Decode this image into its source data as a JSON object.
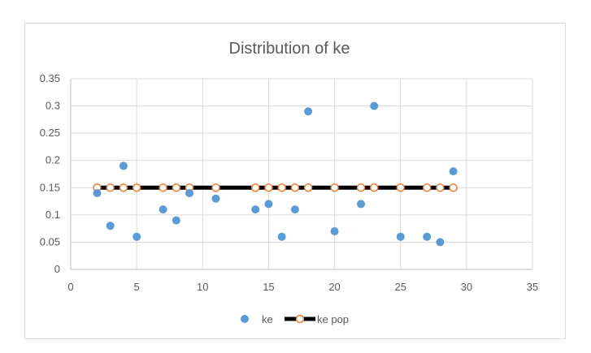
{
  "chart_data": {
    "type": "scatter",
    "title": "Distribution of ke",
    "xlabel": "",
    "ylabel": "",
    "xlim": [
      0,
      35
    ],
    "ylim": [
      0,
      0.35
    ],
    "x_ticks": [
      "0",
      "5",
      "10",
      "15",
      "20",
      "25",
      "30",
      "35"
    ],
    "y_ticks": [
      "0",
      "0.05",
      "0.1",
      "0.15",
      "0.2",
      "0.25",
      "0.3",
      "0.35"
    ],
    "grid": "horizontal",
    "legend_position": "bottom",
    "series": [
      {
        "name": "ke",
        "kind": "scatter",
        "color": "#5b9bd5",
        "x": [
          2,
          3,
          4,
          5,
          7,
          8,
          9,
          11,
          14,
          15,
          16,
          17,
          18,
          20,
          22,
          23,
          25,
          27,
          28,
          29
        ],
        "y": [
          0.14,
          0.08,
          0.19,
          0.06,
          0.11,
          0.09,
          0.14,
          0.13,
          0.11,
          0.12,
          0.06,
          0.11,
          0.29,
          0.07,
          0.12,
          0.3,
          0.06,
          0.06,
          0.05,
          0.18
        ]
      },
      {
        "name": "ke pop",
        "kind": "line-with-markers",
        "color": "#000000",
        "marker_color": "#ed7d31",
        "x": [
          2,
          3,
          4,
          5,
          7,
          8,
          9,
          11,
          14,
          15,
          16,
          17,
          18,
          20,
          22,
          23,
          25,
          27,
          28,
          29
        ],
        "y": [
          0.15,
          0.15,
          0.15,
          0.15,
          0.15,
          0.15,
          0.15,
          0.15,
          0.15,
          0.15,
          0.15,
          0.15,
          0.15,
          0.15,
          0.15,
          0.15,
          0.15,
          0.15,
          0.15,
          0.15
        ]
      }
    ]
  }
}
